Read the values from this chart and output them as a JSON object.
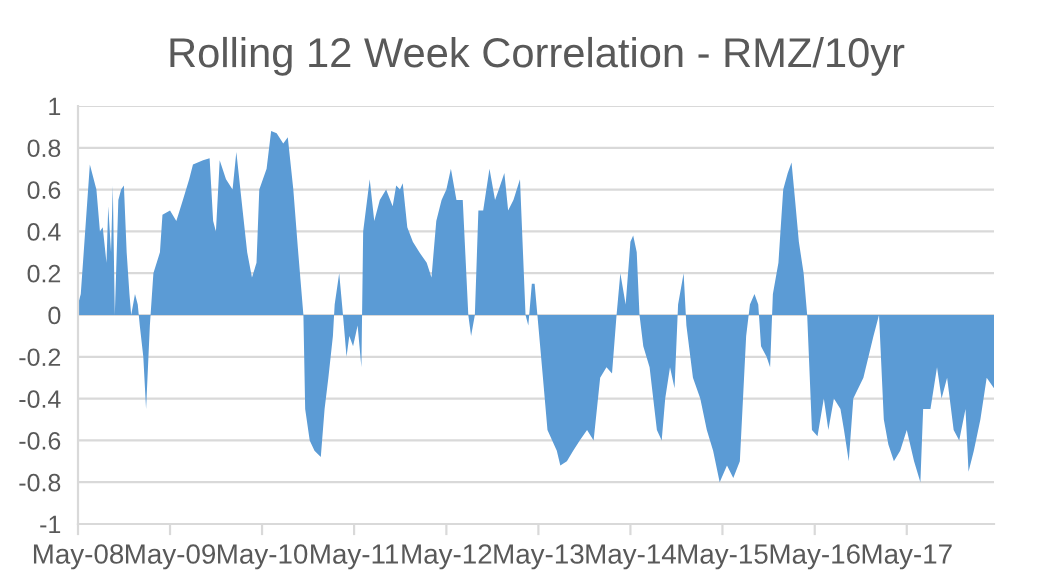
{
  "chart_data": {
    "type": "area",
    "title": "Rolling 12 Week Correlation - RMZ/10yr",
    "x": [
      "2008-05-01",
      "2008-05-12",
      "2008-06-17",
      "2008-07-13",
      "2008-07-27",
      "2008-08-07",
      "2008-08-22",
      "2008-08-29",
      "2008-09-09",
      "2008-09-16",
      "2008-09-24",
      "2008-10-08",
      "2008-10-19",
      "2008-10-30",
      "2008-11-10",
      "2008-11-21",
      "2008-11-28",
      "2008-12-13",
      "2008-12-24",
      "2009-01-01",
      "2009-01-15",
      "2009-01-26",
      "2009-02-10",
      "2009-02-24",
      "2009-03-22",
      "2009-04-01",
      "2009-05-01",
      "2009-05-26",
      "2009-06-21",
      "2009-07-16",
      "2009-07-31",
      "2009-09-09",
      "2009-10-05",
      "2009-10-19",
      "2009-10-30",
      "2009-11-14",
      "2009-12-09",
      "2010-01-04",
      "2010-01-19",
      "2010-02-13",
      "2010-03-03",
      "2010-03-22",
      "2010-04-09",
      "2010-04-20",
      "2010-05-19",
      "2010-06-06",
      "2010-06-28",
      "2010-07-24",
      "2010-08-11",
      "2010-09-02",
      "2010-09-20",
      "2010-10-12",
      "2010-10-19",
      "2010-11-06",
      "2010-11-25",
      "2010-12-20",
      "2011-01-04",
      "2011-01-19",
      "2011-02-06",
      "2011-02-13",
      "2011-03-03",
      "2011-03-18",
      "2011-04-01",
      "2011-04-12",
      "2011-04-27",
      "2011-05-15",
      "2011-05-30",
      "2011-06-06",
      "2011-07-02",
      "2011-07-20",
      "2011-08-11",
      "2011-09-05",
      "2011-10-01",
      "2011-10-15",
      "2011-10-30",
      "2011-11-10",
      "2011-11-28",
      "2011-12-20",
      "2012-01-15",
      "2012-02-13",
      "2012-03-03",
      "2012-03-22",
      "2012-04-12",
      "2012-05-01",
      "2012-05-19",
      "2012-06-10",
      "2012-07-05",
      "2012-07-27",
      "2012-08-07",
      "2012-08-22",
      "2012-09-05",
      "2012-09-24",
      "2012-10-19",
      "2012-11-10",
      "2012-11-25",
      "2012-12-17",
      "2013-01-01",
      "2013-01-22",
      "2013-02-17",
      "2013-03-11",
      "2013-03-22",
      "2013-04-05",
      "2013-04-16",
      "2013-04-27",
      "2013-05-19",
      "2013-06-06",
      "2013-07-13",
      "2013-07-27",
      "2013-08-22",
      "2013-09-16",
      "2013-10-12",
      "2013-11-10",
      "2013-12-06",
      "2014-01-01",
      "2014-01-26",
      "2014-02-17",
      "2014-03-07",
      "2014-03-22",
      "2014-04-12",
      "2014-05-01",
      "2014-05-12",
      "2014-05-26",
      "2014-06-06",
      "2014-06-21",
      "2014-07-16",
      "2014-08-14",
      "2014-09-02",
      "2014-09-16",
      "2014-10-05",
      "2014-10-23",
      "2014-11-06",
      "2014-11-28",
      "2014-12-09",
      "2015-01-04",
      "2015-02-02",
      "2015-02-28",
      "2015-03-25",
      "2015-04-20",
      "2015-05-19",
      "2015-06-13",
      "2015-07-09",
      "2015-08-03",
      "2015-08-18",
      "2015-09-05",
      "2015-09-20",
      "2015-10-01",
      "2015-10-23",
      "2015-11-06",
      "2015-11-17",
      "2015-12-09",
      "2015-12-28",
      "2016-01-15",
      "2016-01-30",
      "2016-02-13",
      "2016-02-28",
      "2016-03-18",
      "2016-04-01",
      "2016-04-20",
      "2016-05-12",
      "2016-06-06",
      "2016-06-24",
      "2016-07-16",
      "2016-08-11",
      "2016-08-25",
      "2016-09-13",
      "2016-10-01",
      "2016-11-10",
      "2016-12-20",
      "2017-01-11",
      "2017-01-30",
      "2017-02-17",
      "2017-03-11",
      "2017-04-05",
      "2017-05-01",
      "2017-05-30",
      "2017-06-24",
      "2017-07-05",
      "2017-08-03",
      "2017-08-29",
      "2017-09-16",
      "2017-10-08",
      "2017-11-03",
      "2017-11-25",
      "2017-12-20",
      "2018-01-01",
      "2018-01-22",
      "2018-02-17",
      "2018-03-14",
      "2018-04-12"
    ],
    "series": [
      {
        "color": "#5b9bd5",
        "values": [
          0.05,
          0.1,
          0.72,
          0.6,
          0.4,
          0.42,
          0.25,
          0.52,
          0.3,
          0.62,
          0.0,
          0.55,
          0.6,
          0.62,
          0.3,
          0.1,
          0.0,
          0.1,
          0.05,
          -0.05,
          -0.2,
          -0.45,
          -0.05,
          0.2,
          0.3,
          0.48,
          0.5,
          0.45,
          0.55,
          0.65,
          0.72,
          0.74,
          0.75,
          0.45,
          0.4,
          0.74,
          0.65,
          0.6,
          0.78,
          0.5,
          0.3,
          0.18,
          0.25,
          0.6,
          0.7,
          0.88,
          0.87,
          0.82,
          0.85,
          0.6,
          0.32,
          0.0,
          -0.45,
          -0.6,
          -0.65,
          -0.68,
          -0.45,
          -0.3,
          -0.1,
          0.05,
          0.2,
          0.0,
          -0.2,
          -0.1,
          -0.15,
          -0.05,
          -0.25,
          0.4,
          0.65,
          0.45,
          0.55,
          0.6,
          0.52,
          0.62,
          0.6,
          0.63,
          0.42,
          0.35,
          0.3,
          0.25,
          0.18,
          0.45,
          0.55,
          0.6,
          0.7,
          0.55,
          0.55,
          0.0,
          -0.1,
          0.0,
          0.5,
          0.5,
          0.7,
          0.55,
          0.6,
          0.68,
          0.5,
          0.55,
          0.65,
          0.0,
          -0.05,
          0.15,
          0.15,
          0.0,
          -0.3,
          -0.55,
          -0.65,
          -0.72,
          -0.7,
          -0.65,
          -0.6,
          -0.55,
          -0.6,
          -0.3,
          -0.25,
          -0.28,
          0.0,
          0.2,
          0.05,
          0.35,
          0.38,
          0.3,
          0.0,
          -0.15,
          -0.25,
          -0.55,
          -0.6,
          -0.4,
          -0.25,
          -0.35,
          0.05,
          0.2,
          -0.05,
          -0.3,
          -0.4,
          -0.55,
          -0.65,
          -0.8,
          -0.72,
          -0.78,
          -0.7,
          -0.1,
          0.05,
          0.1,
          0.05,
          -0.15,
          -0.2,
          -0.25,
          0.1,
          0.25,
          0.6,
          0.68,
          0.73,
          0.55,
          0.35,
          0.2,
          0.0,
          -0.55,
          -0.58,
          -0.4,
          -0.55,
          -0.4,
          -0.45,
          -0.55,
          -0.7,
          -0.4,
          -0.3,
          -0.1,
          0.0,
          -0.5,
          -0.62,
          -0.7,
          -0.65,
          -0.55,
          -0.7,
          -0.8,
          -0.45,
          -0.45,
          -0.25,
          -0.4,
          -0.3,
          -0.55,
          -0.6,
          -0.45,
          -0.75,
          -0.65,
          -0.5,
          -0.3,
          -0.35
        ]
      }
    ],
    "xlim": [
      "2008-05-01",
      "2018-04-12"
    ],
    "xticks": [
      {
        "value": "2008-05-01",
        "label": "May-08"
      },
      {
        "value": "2009-05-01",
        "label": "May-09"
      },
      {
        "value": "2010-05-01",
        "label": "May-10"
      },
      {
        "value": "2011-05-01",
        "label": "May-11"
      },
      {
        "value": "2012-05-01",
        "label": "May-12"
      },
      {
        "value": "2013-05-01",
        "label": "May-13"
      },
      {
        "value": "2014-05-01",
        "label": "May-14"
      },
      {
        "value": "2015-05-01",
        "label": "May-15"
      },
      {
        "value": "2016-05-01",
        "label": "May-16"
      },
      {
        "value": "2017-05-01",
        "label": "May-17"
      }
    ],
    "ylim": [
      -1,
      1
    ],
    "yticks": [
      -1,
      -0.8,
      -0.6,
      -0.4,
      -0.2,
      0,
      0.2,
      0.4,
      0.6,
      0.8,
      1
    ],
    "grid": "y"
  }
}
